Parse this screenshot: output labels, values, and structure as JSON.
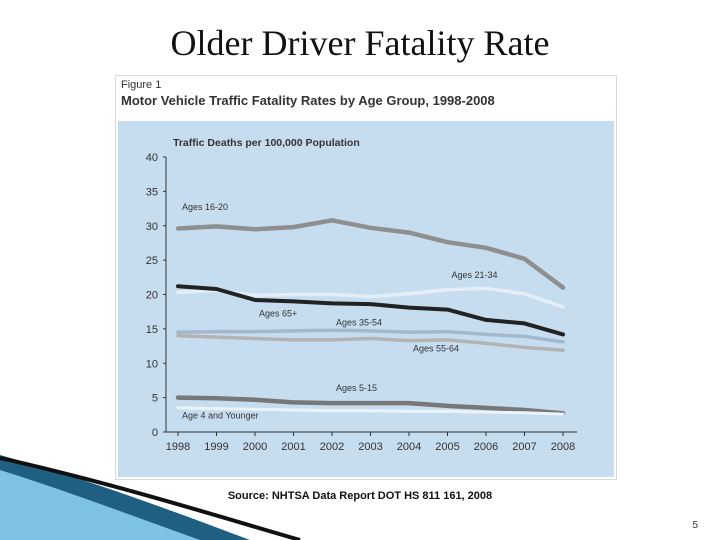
{
  "slide": {
    "title": "Older Driver Fatality Rate",
    "source": "Source: NHTSA Data Report DOT HS 811 161, 2008",
    "page_number": "5"
  },
  "figure": {
    "label": "Figure 1",
    "title": "Motor Vehicle Traffic Fatality Rates by Age Group, 1998-2008"
  },
  "chart_data": {
    "type": "line",
    "title": "Traffic Deaths per 100,000 Population",
    "xlabel": "",
    "ylabel": "",
    "x": [
      "1998",
      "1999",
      "2000",
      "2001",
      "2002",
      "2003",
      "2004",
      "2005",
      "2006",
      "2007",
      "2008"
    ],
    "ylim": [
      0,
      40
    ],
    "yticks": [
      0,
      5,
      10,
      15,
      20,
      25,
      30,
      35,
      40
    ],
    "grid": false,
    "legend": "inline labels",
    "series": [
      {
        "name": "Ages 16-20",
        "color": "#8f8f8f",
        "width": 4.5,
        "values": [
          29.6,
          29.9,
          29.5,
          29.8,
          30.8,
          29.7,
          29.0,
          27.6,
          26.8,
          25.2,
          21.0
        ]
      },
      {
        "name": "Ages 21-34",
        "color": "#e3eef9",
        "width": 3.5,
        "values": [
          20.3,
          20.6,
          19.9,
          20.0,
          20.0,
          19.7,
          20.1,
          20.7,
          20.9,
          20.1,
          18.2
        ]
      },
      {
        "name": "Ages 65+",
        "color": "#222222",
        "width": 4,
        "values": [
          21.2,
          20.8,
          19.2,
          19.0,
          18.7,
          18.6,
          18.1,
          17.8,
          16.3,
          15.8,
          14.2
        ]
      },
      {
        "name": "Ages 35-54",
        "color": "#a3b8cc",
        "width": 3.5,
        "values": [
          14.5,
          14.6,
          14.6,
          14.7,
          14.8,
          14.7,
          14.5,
          14.6,
          14.2,
          13.9,
          13.1
        ]
      },
      {
        "name": "Ages 55-64",
        "color": "#b3b3b3",
        "width": 3.5,
        "values": [
          14.0,
          13.8,
          13.6,
          13.4,
          13.4,
          13.6,
          13.3,
          13.4,
          12.9,
          12.3,
          11.9
        ]
      },
      {
        "name": "Ages 5-15",
        "color": "#777777",
        "width": 4.5,
        "values": [
          5.0,
          4.9,
          4.7,
          4.3,
          4.2,
          4.2,
          4.2,
          3.8,
          3.5,
          3.2,
          2.7
        ]
      },
      {
        "name": "Age 4 and Younger",
        "color": "#eaf2fa",
        "width": 3,
        "values": [
          3.5,
          3.4,
          3.3,
          3.2,
          3.1,
          3.1,
          3.0,
          3.0,
          2.9,
          2.8,
          2.6
        ]
      }
    ],
    "annotations": [
      {
        "text": "Ages 16-20",
        "x": "1998",
        "y": 32.3
      },
      {
        "text": "Ages 21-34",
        "x": "2005",
        "y": 22.4
      },
      {
        "text": "Ages 65+",
        "x": "2000",
        "y": 16.8
      },
      {
        "text": "Ages 35-54",
        "x": "2002",
        "y": 15.5
      },
      {
        "text": "Ages 55-64",
        "x": "2004",
        "y": 11.7
      },
      {
        "text": "Ages 5-15",
        "x": "2002",
        "y": 6.0
      },
      {
        "text": "Age 4 and Younger",
        "x": "1998",
        "y": 2.0
      }
    ]
  }
}
